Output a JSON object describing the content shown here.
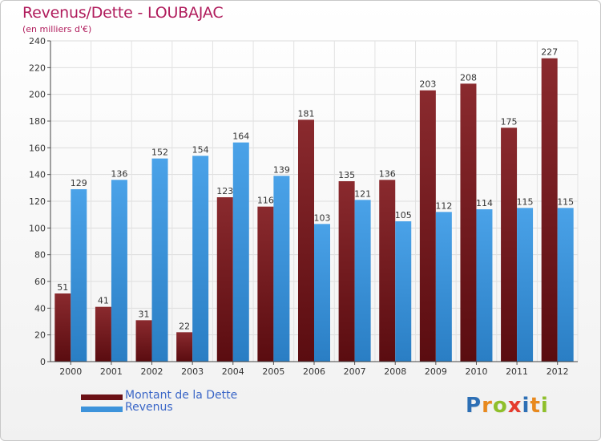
{
  "header": {
    "title": "Revenus/Dette - LOUBAJAC",
    "subtitle": "(en milliers d'€)"
  },
  "legend": {
    "items": [
      {
        "label": "Montant de la Dette",
        "color": "#6b1015"
      },
      {
        "label": "Revenus",
        "color": "#3d93db"
      }
    ]
  },
  "logo": {
    "text": "Proxiti",
    "colors": [
      "#2d6fb5",
      "#e8891e",
      "#8fbf2a",
      "#e53c2e",
      "#2d6fb5",
      "#e8891e",
      "#8fbf2a"
    ]
  },
  "chart_data": {
    "type": "bar",
    "title": "Revenus/Dette - LOUBAJAC",
    "subtitle": "(en milliers d'€)",
    "xlabel": "",
    "ylabel": "",
    "categories": [
      "2000",
      "2001",
      "2002",
      "2003",
      "2004",
      "2005",
      "2006",
      "2007",
      "2008",
      "2009",
      "2010",
      "2011",
      "2012"
    ],
    "series": [
      {
        "name": "Montant de la Dette",
        "color": "#7a1c20",
        "values": [
          51,
          41,
          31,
          22,
          123,
          116,
          181,
          135,
          136,
          203,
          208,
          175,
          227
        ]
      },
      {
        "name": "Revenus",
        "color": "#3d93db",
        "values": [
          129,
          136,
          152,
          154,
          164,
          139,
          103,
          121,
          105,
          112,
          114,
          115,
          115
        ]
      }
    ],
    "ylim": [
      0,
      240
    ],
    "yticks": [
      0,
      20,
      40,
      60,
      80,
      100,
      120,
      140,
      160,
      180,
      200,
      220,
      240
    ],
    "grid": true,
    "legend_position": "bottom-left"
  }
}
